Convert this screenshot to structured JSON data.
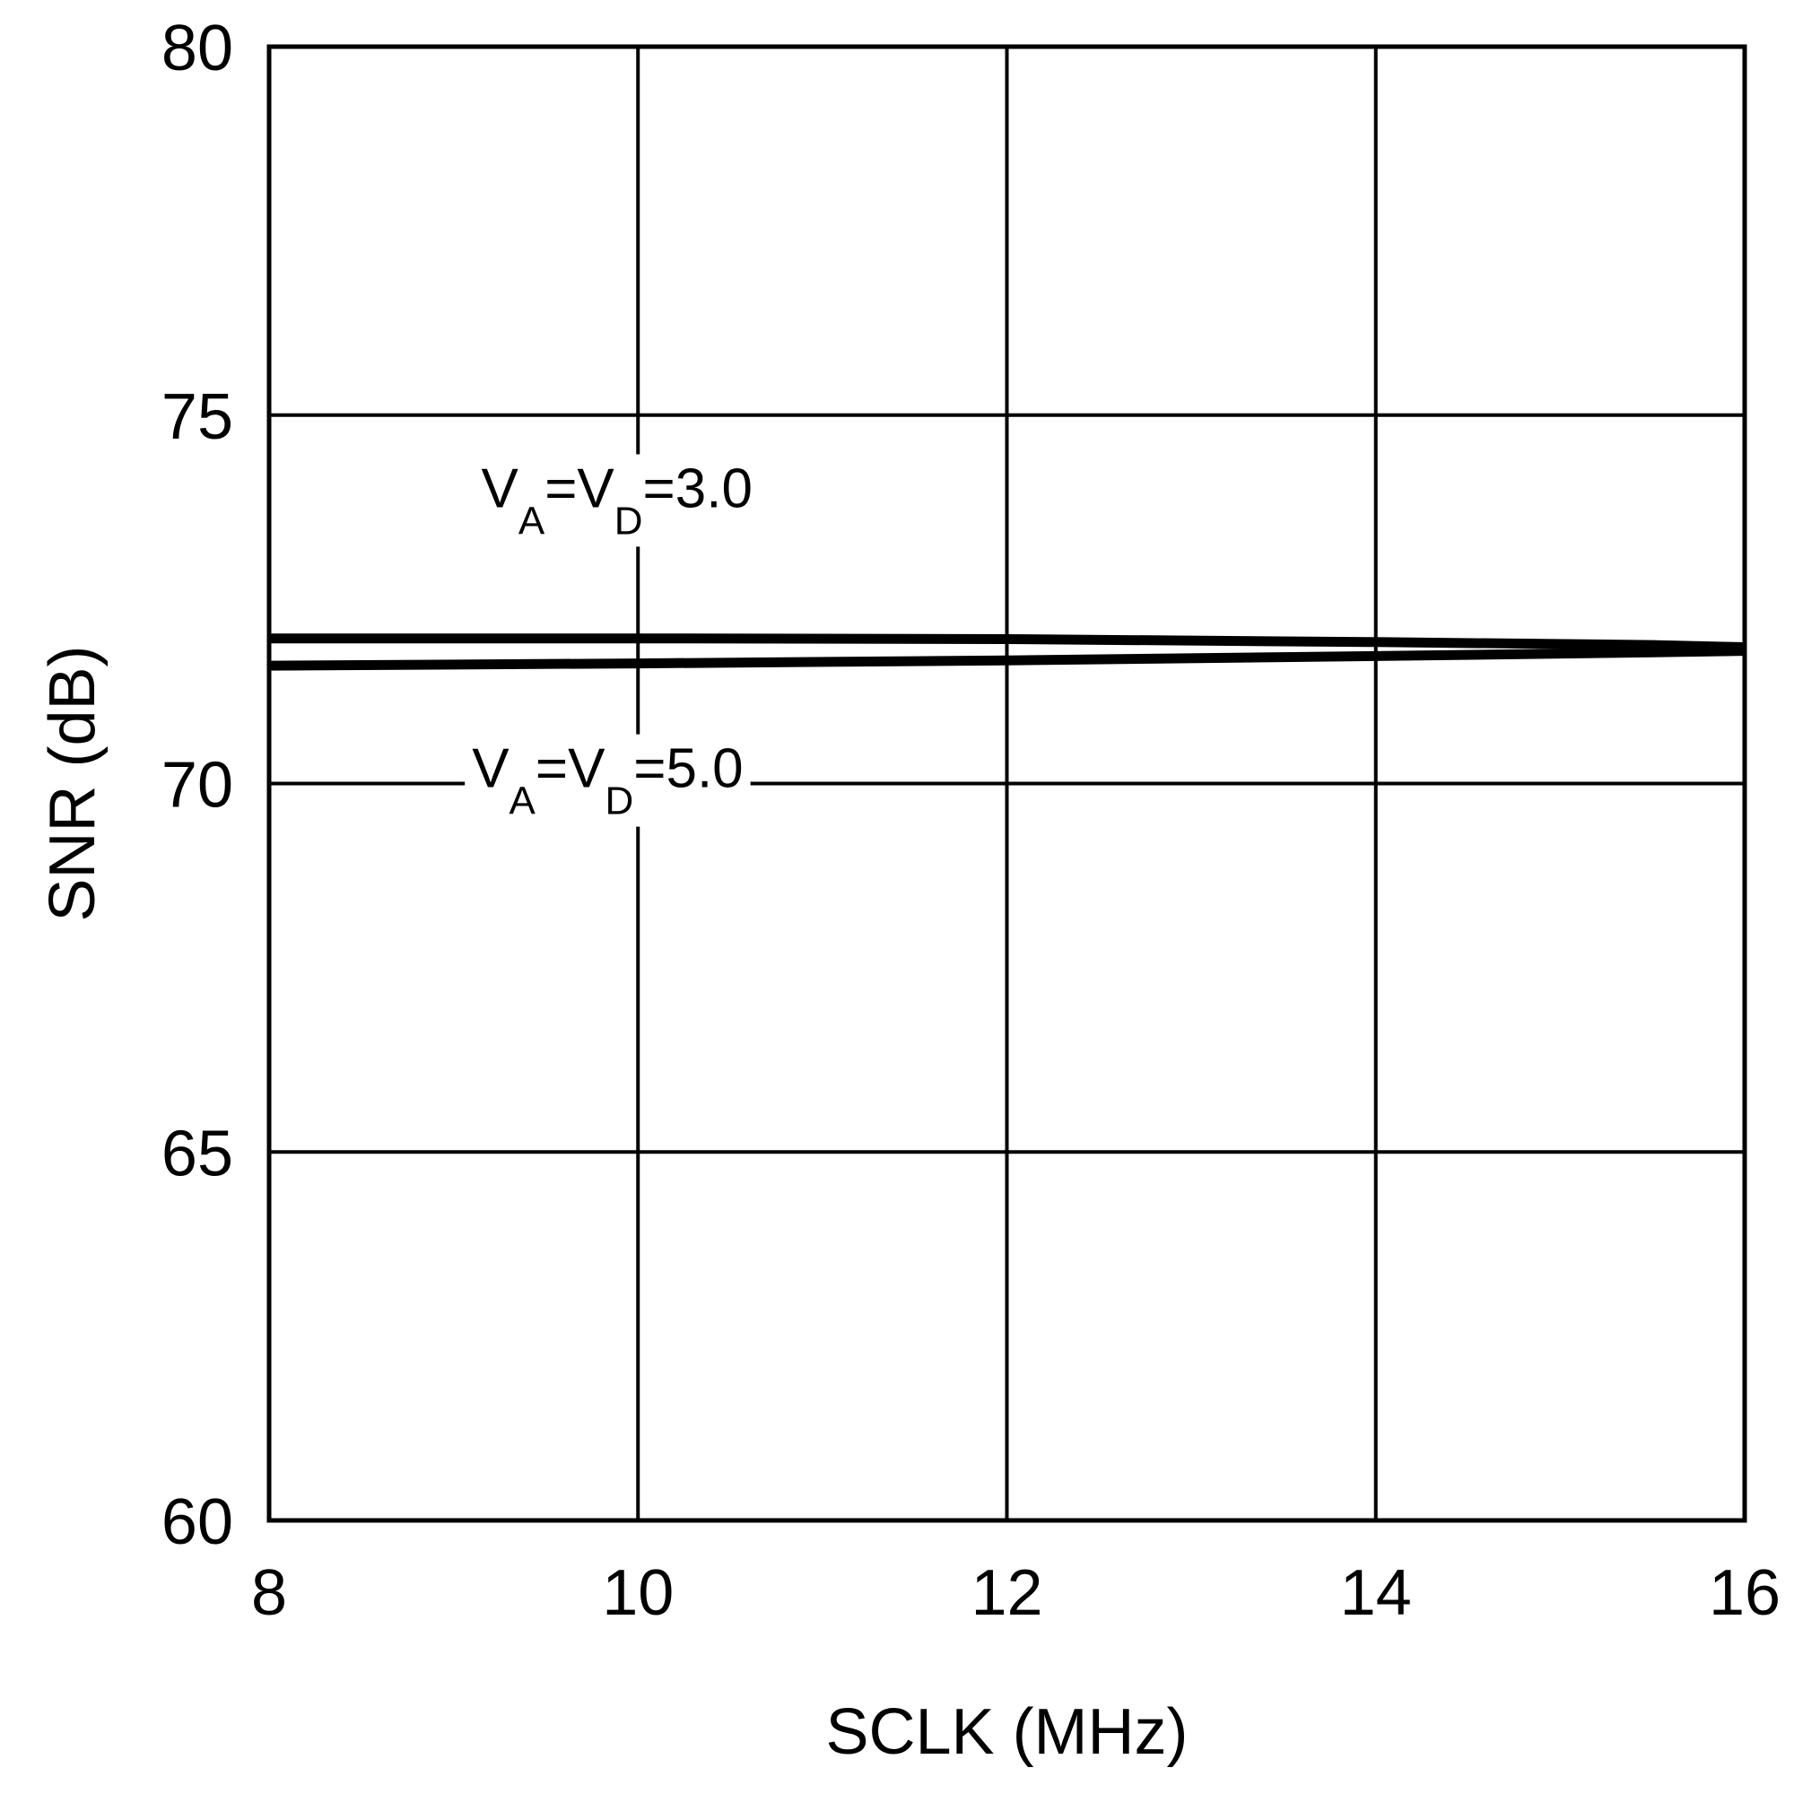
{
  "chart_data": {
    "type": "line",
    "title": "",
    "xlabel": "SCLK (MHz)",
    "ylabel": "SNR (dB)",
    "xlim": [
      8,
      16
    ],
    "ylim": [
      60,
      80
    ],
    "xticks": [
      8,
      10,
      12,
      14,
      16
    ],
    "yticks": [
      60,
      65,
      70,
      75,
      80
    ],
    "x_tick_labels": [
      "8",
      "10",
      "12",
      "14",
      "16"
    ],
    "y_tick_labels": [
      "60",
      "65",
      "70",
      "75",
      "80"
    ],
    "grid": true,
    "legend": "none",
    "line_color": "#000000",
    "series": [
      {
        "name": "VA=VD=3.0",
        "x": [
          8,
          10,
          12,
          14,
          15.5,
          16
        ],
        "y": [
          71.97,
          71.97,
          71.96,
          71.92,
          71.88,
          71.85
        ]
      },
      {
        "name": "VA=VD=5.0",
        "x": [
          8,
          10,
          12,
          14,
          15.5,
          16
        ],
        "y": [
          71.6,
          71.63,
          71.67,
          71.73,
          71.78,
          71.8
        ]
      }
    ],
    "annotations": [
      {
        "main": "V",
        "sub1": "A",
        "mid": "=V",
        "sub2": "D",
        "tail": "=3.0",
        "x": 9.15,
        "y": 73.75,
        "series": "VA=VD=3.0"
      },
      {
        "main": "V",
        "sub1": "A",
        "mid": "=V",
        "sub2": "D",
        "tail": "=5.0",
        "x": 9.1,
        "y": 69.95,
        "series": "VA=VD=5.0"
      }
    ]
  }
}
